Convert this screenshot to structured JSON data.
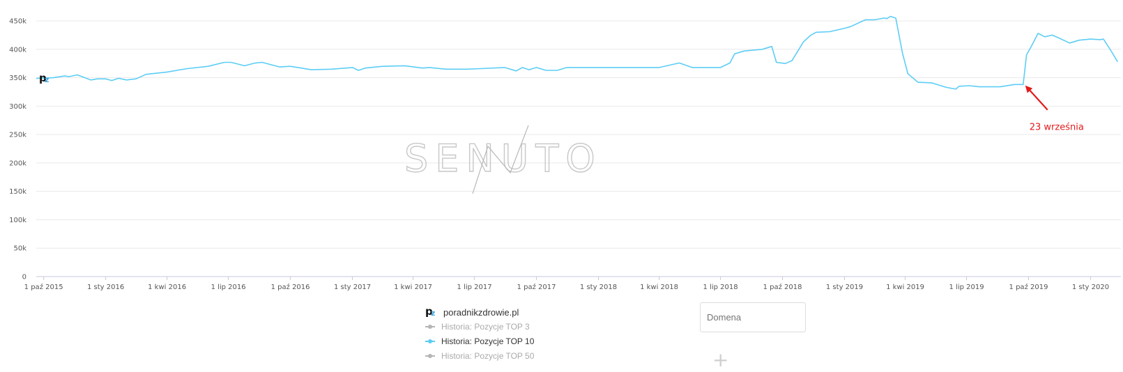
{
  "chart_data": {
    "type": "line",
    "x_tick_labels": [
      "1 paź 2015",
      "1 sty 2016",
      "1 kwi 2016",
      "1 lip 2016",
      "1 paź 2016",
      "1 sty 2017",
      "1 kwi 2017",
      "1 lip 2017",
      "1 paź 2017",
      "1 sty 2018",
      "1 kwi 2018",
      "1 lip 2018",
      "1 paź 2018",
      "1 sty 2019",
      "1 kwi 2019",
      "1 lip 2019",
      "1 paź 2019",
      "1 sty 2020"
    ],
    "y_tick_labels": [
      "0",
      "50k",
      "100k",
      "150k",
      "200k",
      "250k",
      "300k",
      "350k",
      "400k",
      "450k"
    ],
    "ylim": [
      0,
      450000
    ],
    "xlim": [
      "2015-09-20",
      "2020-02-15"
    ],
    "grid": true,
    "legend_placement": "bottom-center",
    "series": [
      {
        "name": "Historia: Pozycje TOP 10",
        "color": "#5ccdf5",
        "x": [
          "2015-09-20",
          "2015-10-15",
          "2015-11-01",
          "2015-11-08",
          "2015-11-20",
          "2015-12-10",
          "2015-12-20",
          "2016-01-01",
          "2016-01-10",
          "2016-01-20",
          "2016-02-01",
          "2016-02-15",
          "2016-03-01",
          "2016-04-01",
          "2016-05-01",
          "2016-06-01",
          "2016-06-25",
          "2016-07-05",
          "2016-07-25",
          "2016-08-10",
          "2016-08-20",
          "2016-09-15",
          "2016-10-01",
          "2016-11-01",
          "2016-12-01",
          "2017-01-01",
          "2017-01-10",
          "2017-01-20",
          "2017-02-15",
          "2017-03-20",
          "2017-04-15",
          "2017-04-25",
          "2017-05-20",
          "2017-06-20",
          "2017-07-10",
          "2017-08-15",
          "2017-09-01",
          "2017-09-10",
          "2017-09-20",
          "2017-10-01",
          "2017-10-15",
          "2017-11-01",
          "2017-11-15",
          "2017-12-01",
          "2018-01-01",
          "2018-02-01",
          "2018-03-01",
          "2018-04-01",
          "2018-05-01",
          "2018-05-20",
          "2018-06-01",
          "2018-07-01",
          "2018-07-15",
          "2018-07-22",
          "2018-08-05",
          "2018-09-01",
          "2018-09-15",
          "2018-09-22",
          "2018-10-05",
          "2018-10-15",
          "2018-11-01",
          "2018-11-12",
          "2018-11-20",
          "2018-12-10",
          "2019-01-01",
          "2019-01-10",
          "2019-02-01",
          "2019-02-15",
          "2019-03-01",
          "2019-03-05",
          "2019-03-10",
          "2019-03-18",
          "2019-03-28",
          "2019-04-05",
          "2019-04-20",
          "2019-05-10",
          "2019-06-01",
          "2019-06-15",
          "2019-06-20",
          "2019-07-05",
          "2019-07-20",
          "2019-08-20",
          "2019-09-10",
          "2019-09-23",
          "2019-09-28",
          "2019-10-05",
          "2019-10-15",
          "2019-10-25",
          "2019-11-05",
          "2019-11-15",
          "2019-12-01",
          "2019-12-15",
          "2020-01-01",
          "2020-01-15",
          "2020-01-20",
          "2020-02-01",
          "2020-02-10"
        ],
        "y": [
          349000,
          350000,
          353000,
          352000,
          355000,
          346000,
          348000,
          348000,
          345000,
          349000,
          346000,
          348000,
          356000,
          360000,
          366000,
          370000,
          377000,
          377000,
          371000,
          376000,
          377000,
          369000,
          370000,
          364000,
          365000,
          368000,
          363000,
          367000,
          370000,
          371000,
          367000,
          368000,
          365000,
          365000,
          366000,
          368000,
          362000,
          368000,
          364000,
          368000,
          363000,
          363000,
          368000,
          368000,
          368000,
          368000,
          368000,
          368000,
          376000,
          368000,
          368000,
          368000,
          376000,
          392000,
          397000,
          400000,
          405000,
          377000,
          375000,
          380000,
          413000,
          425000,
          430000,
          431000,
          437000,
          440000,
          452000,
          452000,
          455000,
          454000,
          458000,
          455000,
          393000,
          357000,
          342000,
          341000,
          333000,
          330000,
          335000,
          336000,
          334000,
          334000,
          338000,
          338000,
          390000,
          405000,
          428000,
          422000,
          425000,
          420000,
          411000,
          416000,
          418000,
          417000,
          418000,
          396000,
          378000
        ]
      }
    ],
    "annotation": {
      "text": "23 września",
      "x": "2019-09-23",
      "y": 340000,
      "color": "#e31b1b"
    }
  },
  "watermark": "SENUTO",
  "legend": {
    "domain": "poradnikzdrowie.pl",
    "logo_p": "p",
    "logo_z": "z",
    "items": [
      {
        "label": "Historia: Pozycje TOP 3",
        "color": "#b5b5b5",
        "text_color": "#aaaaaa"
      },
      {
        "label": "Historia: Pozycje TOP 10",
        "color": "#5ccdf5",
        "text_color": "#333333"
      },
      {
        "label": "Historia: Pozycje TOP 50",
        "color": "#b5b5b5",
        "text_color": "#aaaaaa"
      }
    ]
  },
  "domain_input": {
    "placeholder": "Domena"
  },
  "add_icon": "plus-icon",
  "add_glyph": "+"
}
